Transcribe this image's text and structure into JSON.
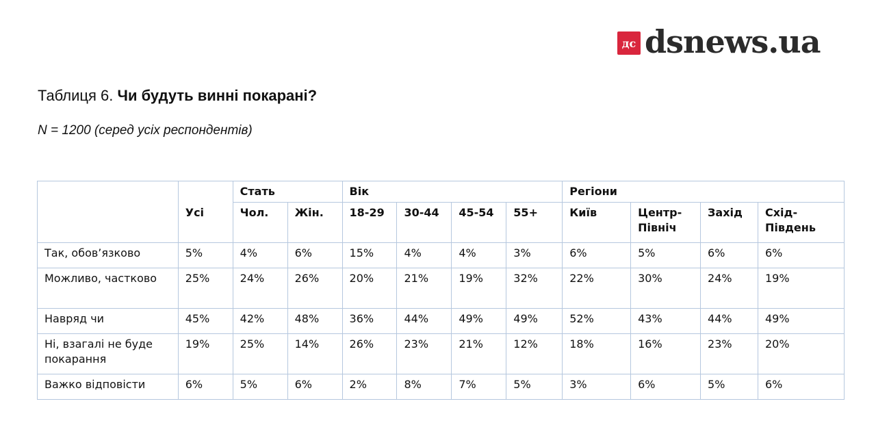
{
  "logo": {
    "badge": "дс",
    "text": "dsnews.ua"
  },
  "title_prefix": "Таблиця 6. ",
  "title_question": "Чи будуть винні покарані?",
  "subtitle": "N = 1200 (серед усіх респондентів)",
  "groups": {
    "all": "Усі",
    "gender": "Стать",
    "age": "Вік",
    "regions": "Регіони"
  },
  "columns": [
    "Чол.",
    "Жін.",
    "18-29",
    "30-44",
    "45-54",
    "55+",
    "Київ",
    "Центр-Північ",
    "Захід",
    "Схід-Південь"
  ],
  "rows": [
    {
      "label": "Так, обов’язково",
      "all": "5%",
      "values": [
        "4%",
        "6%",
        "15%",
        "4%",
        "4%",
        "3%",
        "6%",
        "5%",
        "6%",
        "6%"
      ]
    },
    {
      "label": "Можливо, частково",
      "all": "25%",
      "values": [
        "24%",
        "26%",
        "20%",
        "21%",
        "19%",
        "32%",
        "22%",
        "30%",
        "24%",
        "19%"
      ]
    },
    {
      "label": "Навряд чи",
      "all": "45%",
      "values": [
        "42%",
        "48%",
        "36%",
        "44%",
        "49%",
        "49%",
        "52%",
        "43%",
        "44%",
        "49%"
      ]
    },
    {
      "label": "Ні, взагалі не буде покарання",
      "all": "19%",
      "values": [
        "25%",
        "14%",
        "26%",
        "23%",
        "21%",
        "12%",
        "18%",
        "16%",
        "23%",
        "20%"
      ]
    },
    {
      "label": "Важко відповісти",
      "all": "6%",
      "values": [
        "5%",
        "6%",
        "2%",
        "8%",
        "7%",
        "5%",
        "3%",
        "6%",
        "5%",
        "6%"
      ]
    }
  ]
}
